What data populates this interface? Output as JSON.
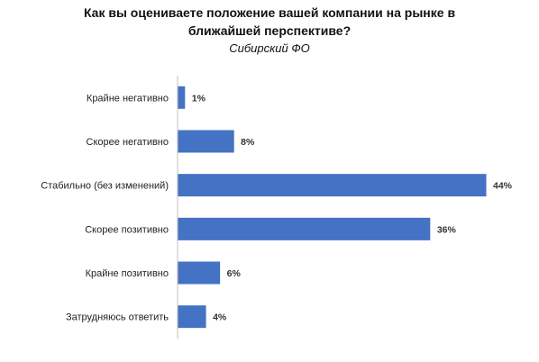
{
  "chart_data": {
    "type": "bar",
    "orientation": "horizontal",
    "title_lines": [
      "Как вы оцениваете положение вашей компании на рынке в",
      "ближайшей перспективе?"
    ],
    "subtitle": "Сибирский ФО",
    "categories": [
      "Крайне негативно",
      "Скорее негативно",
      "Стабильно (без изменений)",
      "Скорее позитивно",
      "Крайне позитивно",
      "Затрудняюсь ответить"
    ],
    "values": [
      1,
      8,
      44,
      36,
      6,
      4
    ],
    "value_labels": [
      "1%",
      "8%",
      "44%",
      "36%",
      "6%",
      "4%"
    ],
    "value_unit": "%",
    "xlim": [
      0,
      44
    ],
    "grid": false,
    "legend": "none",
    "bar_color": "#4472C4",
    "axis_color": "#BFBFBF"
  }
}
